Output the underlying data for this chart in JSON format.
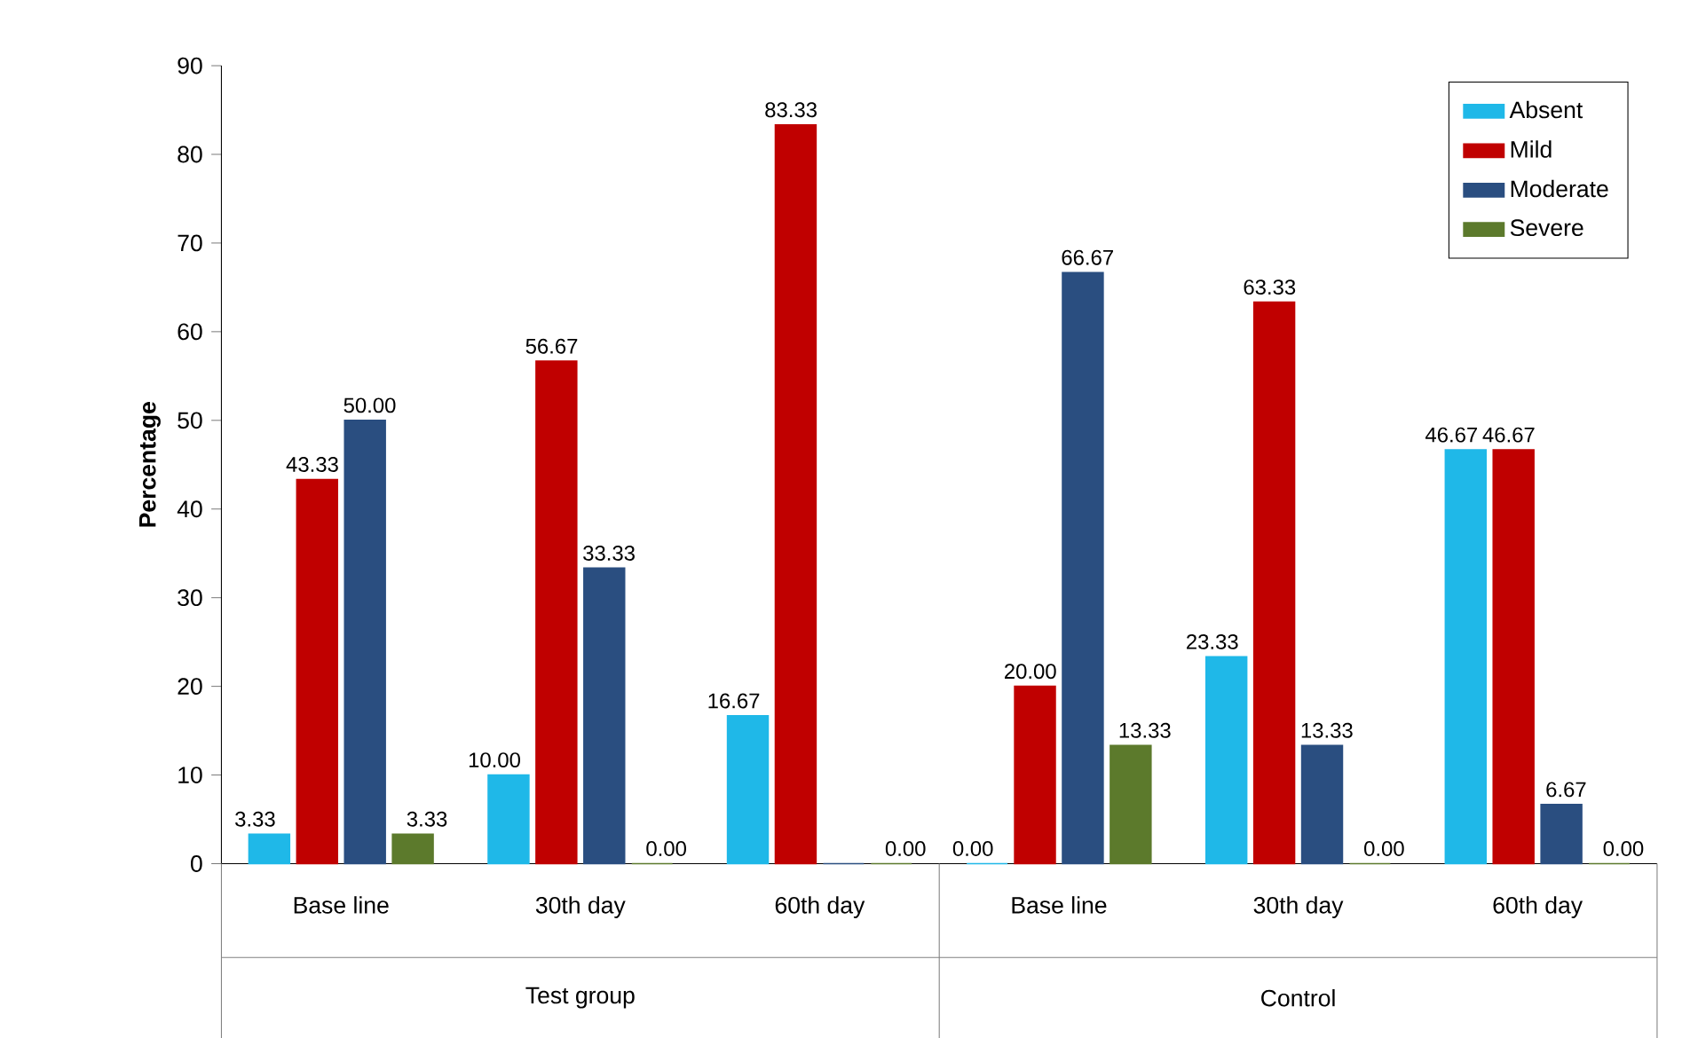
{
  "chart_data": {
    "type": "bar",
    "ylabel": "Percentage",
    "categories": [
      "Base line",
      "30th day",
      "60th day",
      "Base line",
      "30th day",
      "60th day"
    ],
    "annotations": [
      "Test group",
      "Control"
    ],
    "series": [
      {
        "name": "Absent",
        "color": "#1fb8e8",
        "values": [
          3.33,
          10.0,
          16.67,
          0.0,
          23.33,
          46.67
        ],
        "value_labels": [
          "3.33",
          "10.00",
          "16.67",
          "0.00",
          "23.33",
          "46.67"
        ]
      },
      {
        "name": "Mild",
        "color": "#c00000",
        "values": [
          43.33,
          56.67,
          83.33,
          20.0,
          63.33,
          46.67
        ],
        "value_labels": [
          "43.33",
          "56.67",
          "83.33",
          "20.00",
          "63.33",
          "46.67"
        ]
      },
      {
        "name": "Moderate",
        "color": "#2a4e80",
        "values": [
          50.0,
          33.33,
          0.0,
          66.67,
          13.33,
          6.67
        ],
        "value_labels": [
          "50.00",
          "33.33",
          null,
          "66.67",
          "13.33",
          "6.67"
        ]
      },
      {
        "name": "Severe",
        "color": "#5c7a2c",
        "values": [
          3.33,
          0.0,
          0.0,
          13.33,
          0.0,
          0.0
        ],
        "value_labels": [
          "3.33",
          "0.00",
          "0.00",
          "13.33",
          "0.00",
          "0.00"
        ]
      }
    ],
    "ylim": [
      0,
      90
    ],
    "yticks": [
      0,
      10,
      20,
      30,
      40,
      50,
      60,
      70,
      80,
      90
    ],
    "legend": "top right",
    "grid": false
  }
}
